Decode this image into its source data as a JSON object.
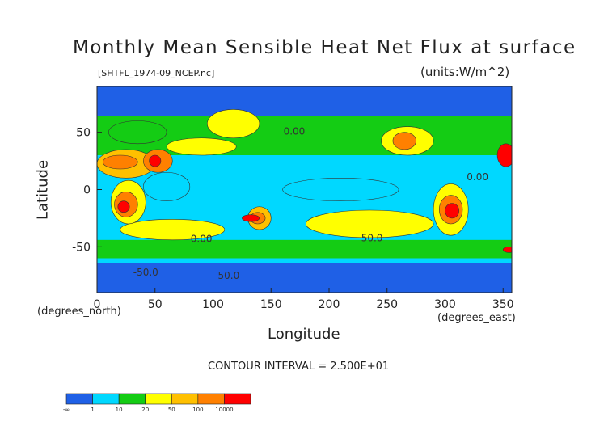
{
  "chart_data": {
    "type": "heatmap",
    "title": "Monthly Mean Sensible Heat Net Flux at surface",
    "file_label": "[SHTFL_1974-09_NCEP.nc]",
    "units_label": "(units:W/m^2)",
    "xlabel": "Longitude",
    "ylabel": "Latitude",
    "x_unit_note": "(degrees_east)",
    "y_unit_note": "(degrees_north)",
    "xlim": [
      0,
      357.5
    ],
    "ylim": [
      -90,
      90
    ],
    "x_ticks": [
      0,
      50,
      100,
      150,
      200,
      250,
      300,
      350
    ],
    "y_ticks": [
      -50,
      0,
      50
    ],
    "contour_interval": "CONTOUR INTERVAL = 2.500E+01",
    "contour_labels": [
      {
        "text": "0.00",
        "x": 170,
        "y": 48
      },
      {
        "text": "0.00",
        "x": 90,
        "y": -46
      },
      {
        "text": "50.0",
        "x": 237,
        "y": -45
      },
      {
        "text": "-50.0",
        "x": 42,
        "y": -75
      },
      {
        "text": "-50.0",
        "x": 112,
        "y": -78
      },
      {
        "text": "0.00",
        "x": 328,
        "y": 8
      }
    ],
    "color_levels": {
      "bounds": [
        "-∞",
        "1",
        "10",
        "20",
        "50",
        "100",
        "10000"
      ],
      "colors": [
        "#1f60e6",
        "#00d8ff",
        "#14cc14",
        "#ffff00",
        "#ffc000",
        "#ff8000",
        "#ff0000"
      ]
    },
    "fields": [
      {
        "lon": [
          0,
          360
        ],
        "lat": [
          -90,
          90
        ],
        "level": 1
      },
      {
        "lon": [
          0,
          360
        ],
        "lat": [
          -90,
          -64
        ],
        "level": 0
      },
      {
        "lon": [
          0,
          360
        ],
        "lat": [
          64,
          90
        ],
        "level": 0
      },
      {
        "lon": [
          0,
          360
        ],
        "lat": [
          -60,
          -44
        ],
        "level": 2
      },
      {
        "lon": [
          0,
          360
        ],
        "lat": [
          30,
          64
        ],
        "level": 2
      },
      {
        "lon": [
          20,
          110
        ],
        "lat": [
          -44,
          -26
        ],
        "level": 3
      },
      {
        "lon": [
          180,
          290
        ],
        "lat": [
          -42,
          -18
        ],
        "level": 3
      },
      {
        "lon": [
          350,
          360
        ],
        "lat": [
          -55,
          -50
        ],
        "level": 6
      },
      {
        "lon": [
          12,
          42
        ],
        "lat": [
          -30,
          8
        ],
        "level": 3
      },
      {
        "lon": [
          15,
          35
        ],
        "lat": [
          -24,
          -2
        ],
        "level": 5
      },
      {
        "lon": [
          18,
          28
        ],
        "lat": [
          -20,
          -10
        ],
        "level": 6
      },
      {
        "lon": [
          0,
          50
        ],
        "lat": [
          10,
          35
        ],
        "level": 4
      },
      {
        "lon": [
          5,
          35
        ],
        "lat": [
          18,
          30
        ],
        "level": 5
      },
      {
        "lon": [
          40,
          65
        ],
        "lat": [
          15,
          35
        ],
        "level": 5
      },
      {
        "lon": [
          45,
          55
        ],
        "lat": [
          20,
          30
        ],
        "level": 6
      },
      {
        "lon": [
          10,
          60
        ],
        "lat": [
          40,
          60
        ],
        "level": 2
      },
      {
        "lon": [
          60,
          120
        ],
        "lat": [
          30,
          45
        ],
        "level": 3
      },
      {
        "lon": [
          95,
          140
        ],
        "lat": [
          45,
          70
        ],
        "level": 3
      },
      {
        "lon": [
          130,
          150
        ],
        "lat": [
          -35,
          -15
        ],
        "level": 4
      },
      {
        "lon": [
          132,
          145
        ],
        "lat": [
          -30,
          -20
        ],
        "level": 5
      },
      {
        "lon": [
          125,
          140
        ],
        "lat": [
          -28,
          -22
        ],
        "level": 6
      },
      {
        "lon": [
          245,
          290
        ],
        "lat": [
          30,
          55
        ],
        "level": 3
      },
      {
        "lon": [
          255,
          275
        ],
        "lat": [
          35,
          50
        ],
        "level": 5
      },
      {
        "lon": [
          290,
          320
        ],
        "lat": [
          -40,
          5
        ],
        "level": 3
      },
      {
        "lon": [
          295,
          315
        ],
        "lat": [
          -30,
          -5
        ],
        "level": 5
      },
      {
        "lon": [
          300,
          312
        ],
        "lat": [
          -25,
          -12
        ],
        "level": 6
      },
      {
        "lon": [
          345,
          360
        ],
        "lat": [
          20,
          40
        ],
        "level": 6
      },
      {
        "lon": [
          160,
          260
        ],
        "lat": [
          -10,
          10
        ],
        "level": 1
      },
      {
        "lon": [
          40,
          80
        ],
        "lat": [
          -10,
          15
        ],
        "level": 1
      }
    ]
  }
}
